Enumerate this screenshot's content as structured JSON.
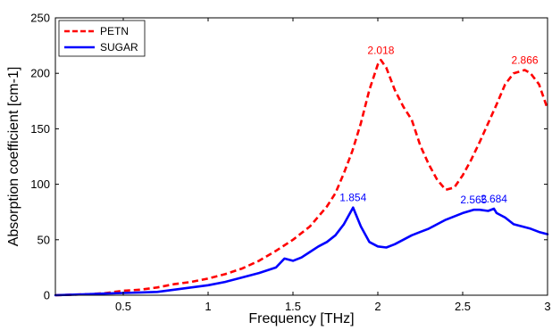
{
  "chart_data": {
    "type": "line",
    "title": "",
    "xlabel": "Frequency [THz]",
    "ylabel": "Absorption coefficient [cm-1]",
    "xlim": [
      0.1,
      3.0
    ],
    "ylim": [
      0,
      250
    ],
    "xticks": [
      0.5,
      1,
      1.5,
      2,
      2.5,
      3
    ],
    "xtick_labels": [
      "0.5",
      "1",
      "1.5",
      "2",
      "2.5",
      "3"
    ],
    "yticks": [
      0,
      50,
      100,
      150,
      200,
      250
    ],
    "ytick_labels": [
      "0",
      "50",
      "100",
      "150",
      "200",
      "250"
    ],
    "grid": false,
    "legend_position": "top-left",
    "series": [
      {
        "name": "PETN",
        "color": "#ff0000",
        "style": "dashed",
        "x": [
          0.1,
          0.2,
          0.3,
          0.4,
          0.5,
          0.6,
          0.7,
          0.8,
          0.9,
          1.0,
          1.1,
          1.2,
          1.3,
          1.4,
          1.5,
          1.6,
          1.7,
          1.75,
          1.8,
          1.85,
          1.9,
          1.95,
          2.0,
          2.018,
          2.05,
          2.1,
          2.15,
          2.2,
          2.25,
          2.3,
          2.35,
          2.4,
          2.45,
          2.5,
          2.55,
          2.6,
          2.65,
          2.7,
          2.75,
          2.8,
          2.866,
          2.9,
          2.95,
          3.0
        ],
        "y": [
          0,
          0.5,
          1,
          2,
          4,
          5,
          7,
          10,
          12,
          15,
          19,
          24,
          31,
          40,
          50,
          62,
          80,
          92,
          110,
          130,
          155,
          185,
          208,
          212,
          205,
          185,
          170,
          158,
          135,
          118,
          104,
          95,
          97,
          108,
          122,
          138,
          155,
          172,
          190,
          200,
          203,
          200,
          190,
          168
        ]
      },
      {
        "name": "SUGAR",
        "color": "#0000ff",
        "style": "solid",
        "x": [
          0.1,
          0.2,
          0.3,
          0.4,
          0.5,
          0.6,
          0.7,
          0.8,
          0.9,
          1.0,
          1.1,
          1.2,
          1.3,
          1.4,
          1.45,
          1.5,
          1.55,
          1.6,
          1.65,
          1.7,
          1.75,
          1.8,
          1.854,
          1.9,
          1.95,
          2.0,
          2.05,
          2.1,
          2.15,
          2.2,
          2.25,
          2.3,
          2.35,
          2.4,
          2.45,
          2.5,
          2.565,
          2.6,
          2.65,
          2.684,
          2.7,
          2.75,
          2.8,
          2.85,
          2.9,
          2.95,
          3.0
        ],
        "y": [
          0,
          0.5,
          1,
          1.5,
          2,
          2.5,
          3,
          5,
          7,
          9,
          12,
          16,
          20,
          25,
          33,
          31,
          34,
          39,
          44,
          48,
          54,
          64,
          79,
          62,
          48,
          44,
          43,
          46,
          50,
          54,
          57,
          60,
          64,
          68,
          71,
          74,
          77,
          77,
          76,
          78,
          74,
          70,
          64,
          62,
          60,
          57,
          55
        ]
      }
    ],
    "annotations": [
      {
        "text": "2.018",
        "x": 2.018,
        "y": 212,
        "color": "#ff0000"
      },
      {
        "text": "2.866",
        "x": 2.866,
        "y": 203,
        "color": "#ff0000"
      },
      {
        "text": "1.854",
        "x": 1.854,
        "y": 79,
        "color": "#0000ff"
      },
      {
        "text": "2.565",
        "x": 2.565,
        "y": 77,
        "color": "#0000ff"
      },
      {
        "text": "2.684",
        "x": 2.684,
        "y": 78,
        "color": "#0000ff"
      }
    ]
  }
}
